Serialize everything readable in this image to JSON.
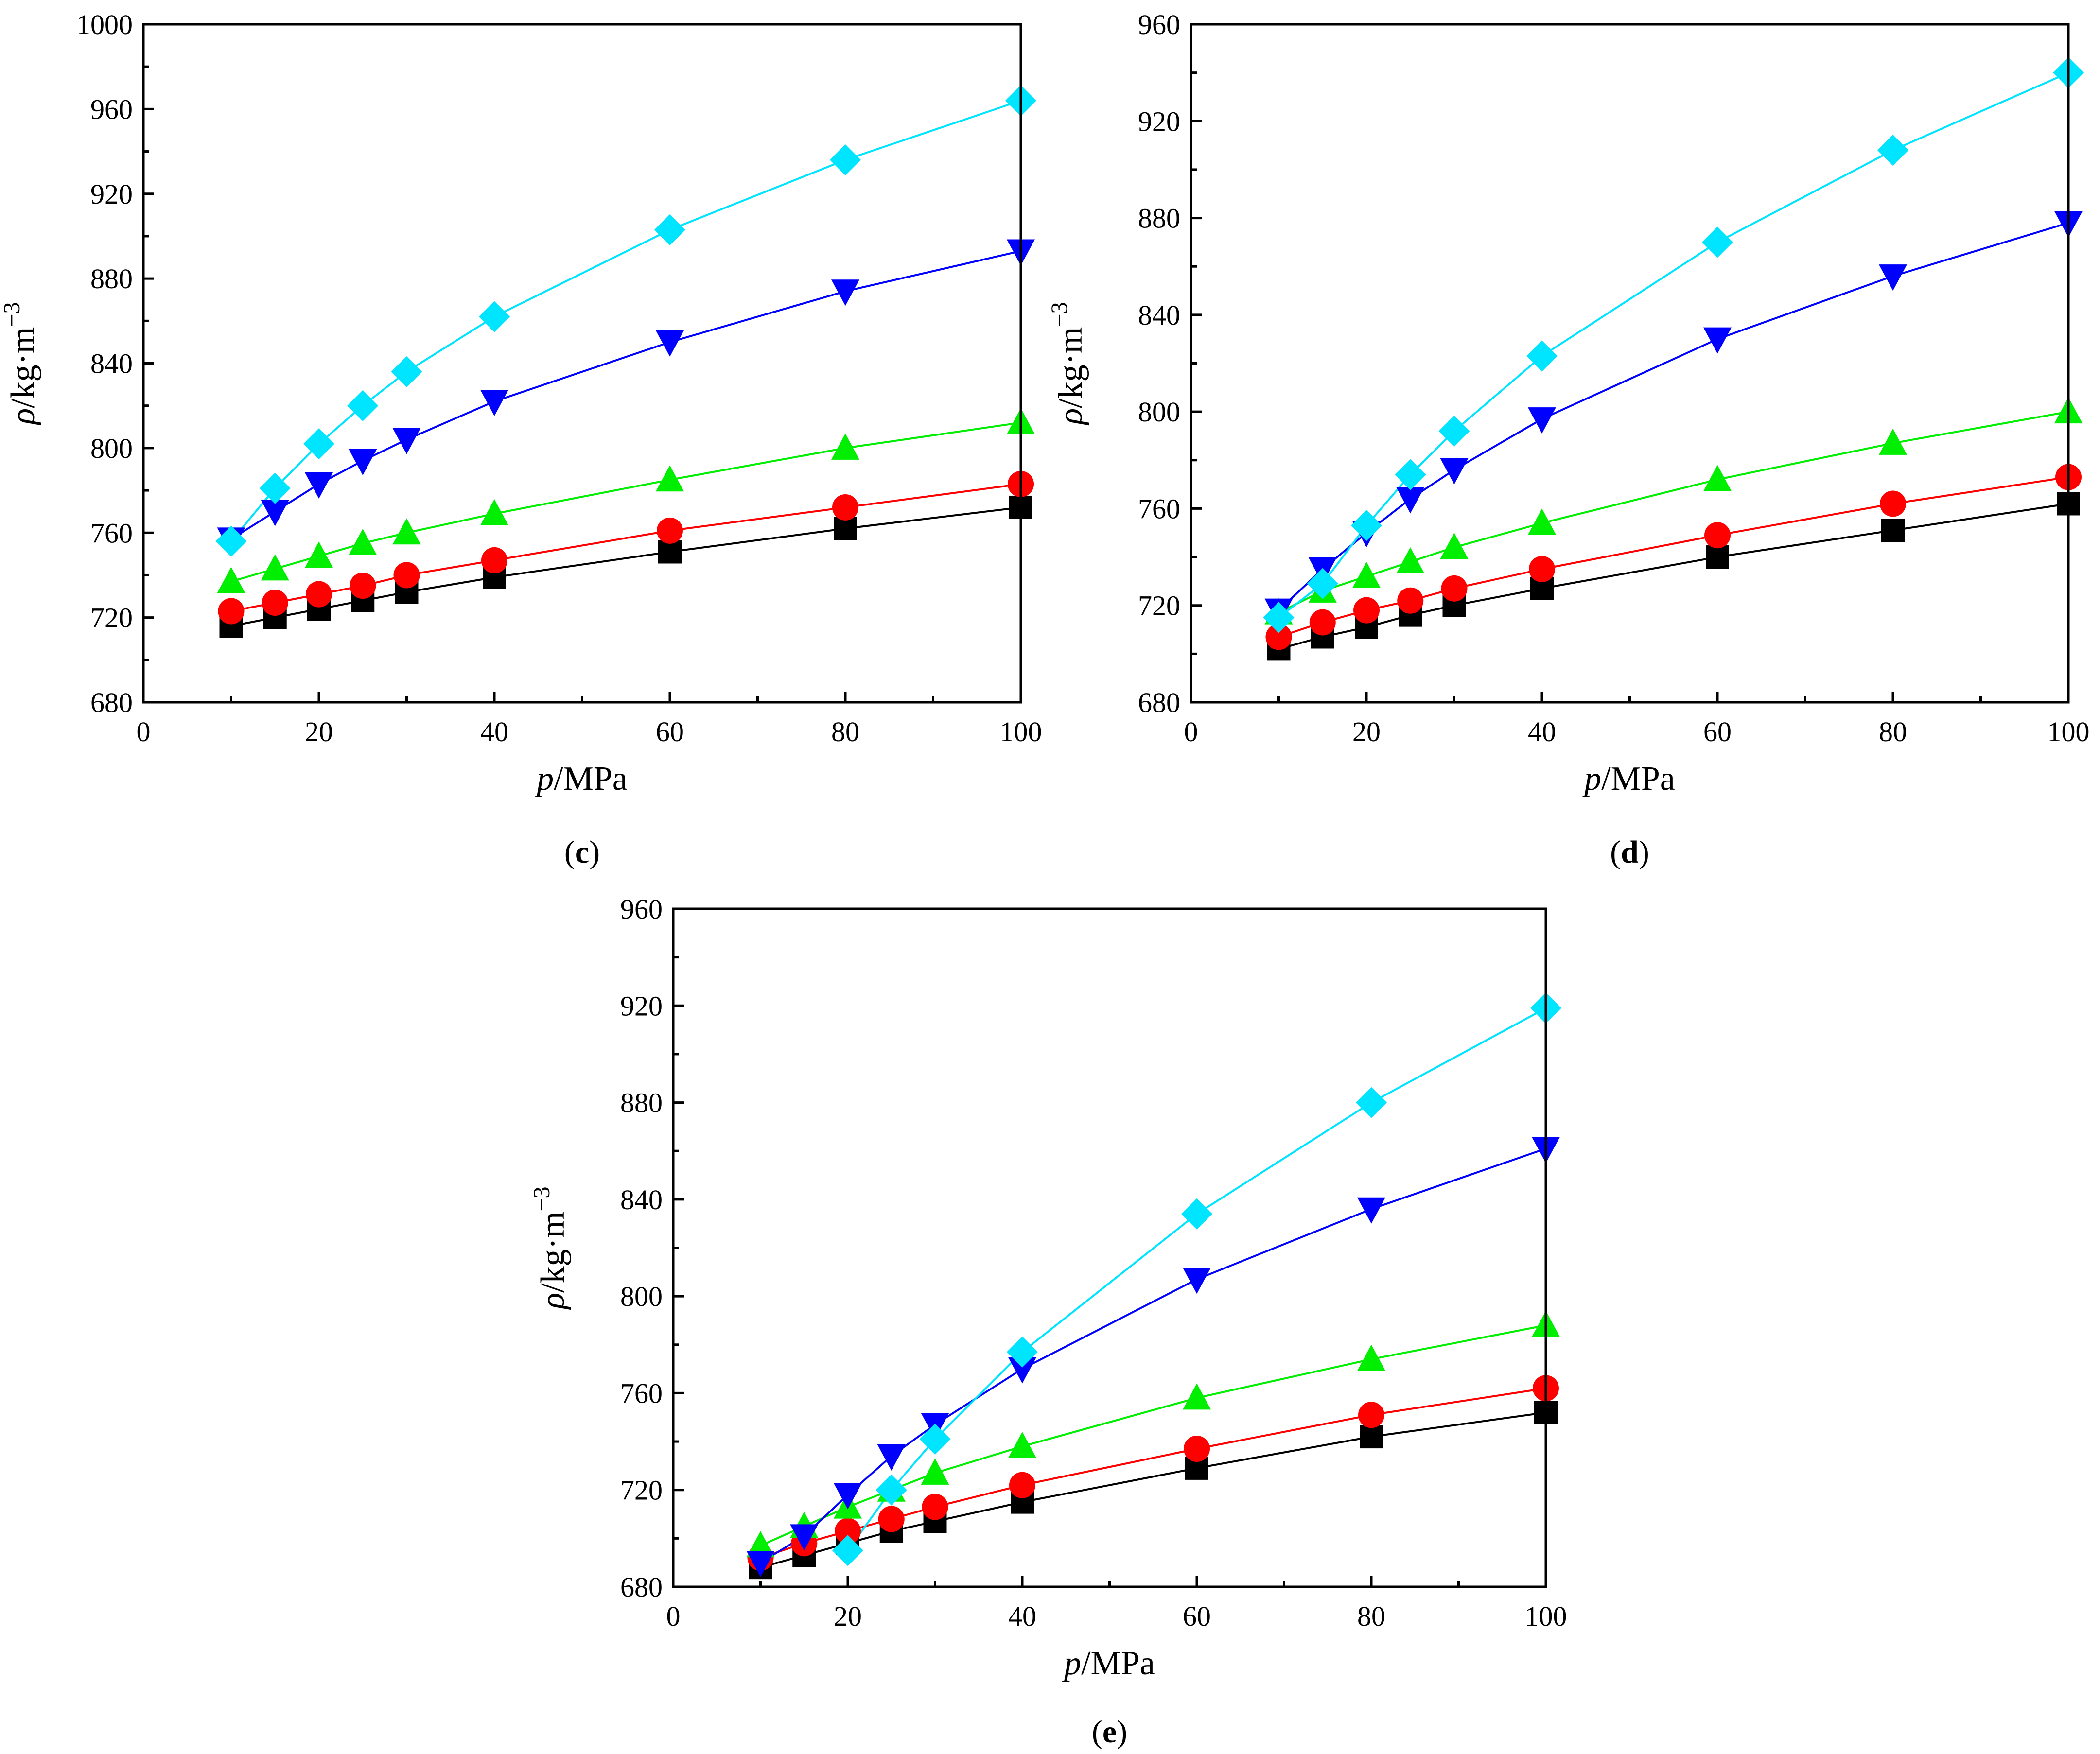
{
  "chart_data": [
    {
      "type": "line",
      "panel_label": "c",
      "xlabel": {
        "symbol": "p",
        "unit": "/MPa"
      },
      "ylabel": {
        "symbol": "ρ",
        "unit": "/kg·m",
        "exponent": "−3"
      },
      "xlim": [
        0,
        100
      ],
      "ylim": [
        680,
        1000
      ],
      "xticks": [
        0,
        20,
        40,
        60,
        80,
        100
      ],
      "yticks": [
        680,
        720,
        760,
        800,
        840,
        880,
        920,
        960,
        1000
      ],
      "x": [
        10,
        15,
        20,
        25,
        30,
        40,
        60,
        80,
        100
      ],
      "series": [
        {
          "name": "black-square",
          "marker": "square",
          "color": "#000000",
          "values": [
            716,
            720,
            724,
            728,
            732,
            739,
            751,
            762,
            772
          ]
        },
        {
          "name": "red-circle",
          "marker": "circle",
          "color": "#ff0000",
          "values": [
            723,
            727,
            731,
            735,
            740,
            747,
            761,
            772,
            783
          ]
        },
        {
          "name": "green-triangle-up",
          "marker": "triangle-up",
          "color": "#00ee00",
          "values": [
            737,
            743,
            749,
            755,
            760,
            769,
            785,
            800,
            812
          ]
        },
        {
          "name": "blue-triangle-down",
          "marker": "triangle-down",
          "color": "#0000ff",
          "values": [
            757,
            770,
            783,
            794,
            804,
            822,
            850,
            874,
            893
          ]
        },
        {
          "name": "cyan-diamond",
          "marker": "diamond",
          "color": "#00e5ff",
          "values": [
            756,
            781,
            802,
            820,
            836,
            862,
            903,
            936,
            964
          ]
        }
      ]
    },
    {
      "type": "line",
      "panel_label": "d",
      "xlabel": {
        "symbol": "p",
        "unit": "/MPa"
      },
      "ylabel": {
        "symbol": "ρ",
        "unit": "/kg·m",
        "exponent": "−3"
      },
      "xlim": [
        0,
        100
      ],
      "ylim": [
        680,
        960
      ],
      "xticks": [
        0,
        20,
        40,
        60,
        80,
        100
      ],
      "yticks": [
        680,
        720,
        760,
        800,
        840,
        880,
        920,
        960
      ],
      "x": [
        10,
        15,
        20,
        25,
        30,
        40,
        60,
        80,
        100
      ],
      "series": [
        {
          "name": "black-square",
          "marker": "square",
          "color": "#000000",
          "values": [
            702,
            707,
            711,
            716,
            720,
            727,
            740,
            751,
            762
          ]
        },
        {
          "name": "red-circle",
          "marker": "circle",
          "color": "#ff0000",
          "values": [
            707,
            713,
            718,
            722,
            727,
            735,
            749,
            762,
            773
          ]
        },
        {
          "name": "green-triangle-up",
          "marker": "triangle-up",
          "color": "#00ee00",
          "values": [
            717,
            726,
            732,
            738,
            744,
            754,
            772,
            787,
            800
          ]
        },
        {
          "name": "blue-triangle-down",
          "marker": "triangle-down",
          "color": "#0000ff",
          "values": [
            718,
            735,
            750,
            764,
            776,
            797,
            830,
            856,
            878
          ]
        },
        {
          "name": "cyan-diamond",
          "marker": "diamond",
          "color": "#00e5ff",
          "values": [
            715,
            729,
            753,
            774,
            792,
            823,
            870,
            908,
            940
          ]
        }
      ]
    },
    {
      "type": "line",
      "panel_label": "e",
      "xlabel": {
        "symbol": "p",
        "unit": "/MPa"
      },
      "ylabel": {
        "symbol": "ρ",
        "unit": "/kg·m",
        "exponent": "−3"
      },
      "xlim": [
        0,
        100
      ],
      "ylim": [
        680,
        960
      ],
      "xticks": [
        0,
        20,
        40,
        60,
        80,
        100
      ],
      "yticks": [
        680,
        720,
        760,
        800,
        840,
        880,
        920,
        960
      ],
      "x": [
        10,
        15,
        20,
        25,
        30,
        40,
        60,
        80,
        100
      ],
      "series": [
        {
          "name": "black-square",
          "marker": "square",
          "color": "#000000",
          "values": [
            688,
            693,
            698,
            703,
            707,
            715,
            729,
            742,
            752
          ]
        },
        {
          "name": "red-circle",
          "marker": "circle",
          "color": "#ff0000",
          "values": [
            692,
            698,
            703,
            708,
            713,
            722,
            737,
            751,
            762
          ]
        },
        {
          "name": "green-triangle-up",
          "marker": "triangle-up",
          "color": "#00ee00",
          "values": [
            697,
            705,
            713,
            720,
            727,
            738,
            758,
            774,
            788
          ]
        },
        {
          "name": "blue-triangle-down",
          "marker": "triangle-down",
          "color": "#0000ff",
          "values": [
            690,
            701,
            718,
            734,
            747,
            770,
            807,
            836,
            861
          ]
        },
        {
          "name": "cyan-diamond",
          "marker": "diamond",
          "color": "#00e5ff",
          "values": [
            null,
            null,
            695,
            720,
            741,
            777,
            834,
            880,
            919
          ]
        }
      ]
    }
  ]
}
